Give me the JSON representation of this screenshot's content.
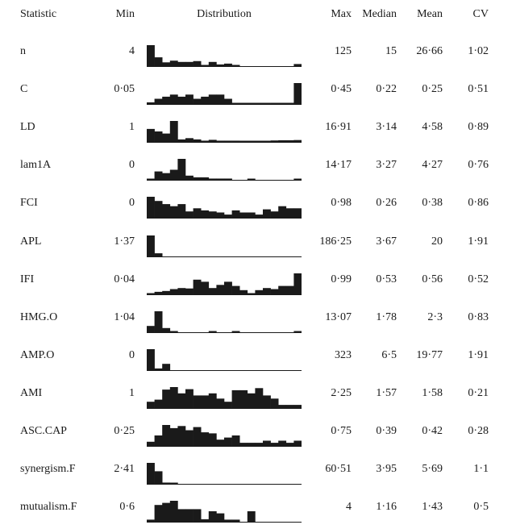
{
  "headers": {
    "statistic": "Statistic",
    "min": "Min",
    "distribution": "Distribution",
    "max": "Max",
    "median": "Median",
    "mean": "Mean",
    "cv": "CV"
  },
  "rows": [
    {
      "stat": "n",
      "min": "4",
      "max": "125",
      "median": "15",
      "mean": "26·66",
      "cv": "1·02",
      "hist": [
        1,
        0.42,
        0.18,
        0.26,
        0.2,
        0.2,
        0.24,
        0.05,
        0.2,
        0.08,
        0.12,
        0.05,
        0,
        0,
        0,
        0,
        0,
        0,
        0,
        0.1
      ]
    },
    {
      "stat": "C",
      "min": "0·05",
      "max": "0·45",
      "median": "0·22",
      "mean": "0·25",
      "cv": "0·51",
      "hist": [
        0.08,
        0.25,
        0.35,
        0.45,
        0.35,
        0.45,
        0.25,
        0.35,
        0.45,
        0.45,
        0.25,
        0.05,
        0.05,
        0.05,
        0.05,
        0.05,
        0.05,
        0.05,
        0.05,
        1
      ]
    },
    {
      "stat": "LD",
      "min": "1",
      "max": "16·91",
      "median": "3·14",
      "mean": "4·58",
      "cv": "0·89",
      "hist": [
        0.62,
        0.5,
        0.4,
        1,
        0.12,
        0.18,
        0.12,
        0.06,
        0.1,
        0.06,
        0.06,
        0.06,
        0.02,
        0.02,
        0.02,
        0.05,
        0.07,
        0.08,
        0.08,
        0.09
      ]
    },
    {
      "stat": "lam1A",
      "min": "0",
      "max": "14·17",
      "median": "3·27",
      "mean": "4·27",
      "cv": "0·76",
      "hist": [
        0.04,
        0.4,
        0.32,
        0.48,
        1,
        0.2,
        0.12,
        0.12,
        0.06,
        0.06,
        0.06,
        0,
        0,
        0.04,
        0,
        0,
        0,
        0,
        0,
        0.04
      ]
    },
    {
      "stat": "FCI",
      "min": "0",
      "max": "0·98",
      "median": "0·26",
      "mean": "0·38",
      "cv": "0·86",
      "hist": [
        1,
        0.8,
        0.65,
        0.55,
        0.65,
        0.3,
        0.45,
        0.35,
        0.3,
        0.25,
        0.15,
        0.35,
        0.25,
        0.25,
        0.15,
        0.4,
        0.3,
        0.55,
        0.45,
        0.45
      ]
    },
    {
      "stat": "APL",
      "min": "1·37",
      "max": "186·25",
      "median": "3·67",
      "mean": "20",
      "cv": "1·91",
      "hist": [
        1,
        0.15,
        0,
        0,
        0,
        0,
        0,
        0,
        0,
        0,
        0,
        0,
        0,
        0,
        0,
        0,
        0,
        0,
        0,
        0
      ]
    },
    {
      "stat": "IFI",
      "min": "0·04",
      "max": "0·99",
      "median": "0·53",
      "mean": "0·56",
      "cv": "0·52",
      "hist": [
        0.04,
        0.12,
        0.16,
        0.25,
        0.3,
        0.28,
        0.7,
        0.6,
        0.3,
        0.45,
        0.6,
        0.4,
        0.2,
        0.05,
        0.2,
        0.3,
        0.25,
        0.4,
        0.4,
        1
      ]
    },
    {
      "stat": "HMG.O",
      "min": "1·04",
      "max": "13·07",
      "median": "1·78",
      "mean": "2·3",
      "cv": "0·83",
      "hist": [
        0.3,
        1,
        0.2,
        0.05,
        0,
        0,
        0,
        0,
        0.04,
        0,
        0,
        0.04,
        0,
        0,
        0,
        0,
        0,
        0,
        0,
        0.04
      ]
    },
    {
      "stat": "AMP.O",
      "min": "0",
      "max": "323",
      "median": "6·5",
      "mean": "19·77",
      "cv": "1·91",
      "hist": [
        1,
        0.08,
        0.3,
        0,
        0,
        0,
        0,
        0,
        0,
        0,
        0,
        0,
        0,
        0,
        0,
        0,
        0,
        0,
        0,
        0
      ]
    },
    {
      "stat": "AMI",
      "min": "1",
      "max": "2·25",
      "median": "1·57",
      "mean": "1·58",
      "cv": "0·21",
      "hist": [
        0.3,
        0.4,
        0.88,
        1,
        0.7,
        0.9,
        0.6,
        0.6,
        0.7,
        0.45,
        0.3,
        0.85,
        0.85,
        0.7,
        0.95,
        0.6,
        0.45,
        0.15,
        0.15,
        0.15
      ]
    },
    {
      "stat": "ASC.CAP",
      "min": "0·25",
      "max": "0·75",
      "median": "0·39",
      "mean": "0·42",
      "cv": "0·28",
      "hist": [
        0.2,
        0.5,
        1,
        0.85,
        0.95,
        0.75,
        0.9,
        0.65,
        0.6,
        0.3,
        0.4,
        0.5,
        0.15,
        0.15,
        0.15,
        0.25,
        0.15,
        0.25,
        0.15,
        0.25
      ]
    },
    {
      "stat": "synergism.F",
      "min": "2·41",
      "max": "60·51",
      "median": "3·95",
      "mean": "5·69",
      "cv": "1·1",
      "hist": [
        1,
        0.6,
        0.06,
        0.02,
        0,
        0,
        0,
        0,
        0,
        0,
        0,
        0,
        0,
        0,
        0,
        0,
        0,
        0,
        0,
        0
      ]
    },
    {
      "stat": "mutualism.F",
      "min": "0·6",
      "max": "4",
      "median": "1·16",
      "mean": "1·43",
      "cv": "0·5",
      "hist": [
        0.1,
        0.8,
        0.9,
        1,
        0.6,
        0.6,
        0.6,
        0.12,
        0.5,
        0.4,
        0.1,
        0.1,
        0,
        0.5,
        0,
        0,
        0,
        0,
        0,
        0
      ]
    }
  ]
}
